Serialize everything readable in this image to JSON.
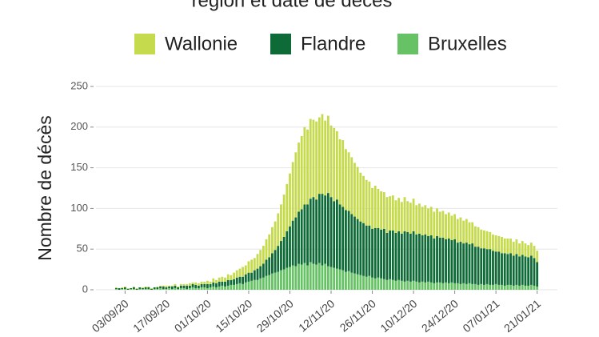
{
  "chart_data": {
    "type": "stacked-bar",
    "title": "région et date de décès",
    "y_label": "Nombre de décès",
    "legend_position": "top",
    "grid": true,
    "ylim": [
      0,
      250
    ],
    "yticks": [
      0,
      50,
      100,
      150,
      200,
      250
    ],
    "categories": [
      null,
      null,
      null,
      "03/09/20",
      null,
      null,
      null,
      null,
      null,
      null,
      null,
      null,
      null,
      null,
      null,
      null,
      null,
      "17/09/20",
      null,
      null,
      null,
      null,
      null,
      null,
      null,
      null,
      null,
      null,
      null,
      null,
      null,
      "01/10/20",
      null,
      null,
      null,
      null,
      null,
      null,
      null,
      null,
      null,
      null,
      null,
      null,
      null,
      "15/10/20",
      null,
      null,
      null,
      null,
      null,
      null,
      null,
      null,
      null,
      null,
      null,
      null,
      null,
      "29/10/20",
      null,
      null,
      null,
      null,
      null,
      null,
      null,
      null,
      null,
      null,
      null,
      null,
      null,
      "12/11/20",
      null,
      null,
      null,
      null,
      null,
      null,
      null,
      null,
      null,
      null,
      null,
      null,
      null,
      "26/11/20",
      null,
      null,
      null,
      null,
      null,
      null,
      null,
      null,
      null,
      null,
      null,
      null,
      null,
      "10/12/20",
      null,
      null,
      null,
      null,
      null,
      null,
      null,
      null,
      null,
      null,
      null,
      null,
      null,
      "24/12/20",
      null,
      null,
      null,
      null,
      null,
      null,
      null,
      null,
      null,
      null,
      null,
      null,
      null,
      "07/01/21",
      null,
      null,
      null,
      null,
      null,
      null,
      null,
      null,
      null,
      null,
      null,
      null,
      null,
      "21/01/21"
    ],
    "series": [
      {
        "name": "Bruxelles",
        "color": "#66c264",
        "values": [
          1,
          0,
          1,
          1,
          0,
          1,
          1,
          0,
          1,
          1,
          1,
          1,
          0,
          1,
          1,
          2,
          1,
          1,
          2,
          1,
          2,
          1,
          2,
          2,
          1,
          2,
          3,
          2,
          2,
          3,
          3,
          2,
          3,
          4,
          3,
          4,
          5,
          4,
          5,
          6,
          6,
          7,
          8,
          7,
          9,
          10,
          11,
          12,
          12,
          14,
          15,
          17,
          18,
          20,
          21,
          22,
          24,
          25,
          27,
          28,
          30,
          29,
          32,
          31,
          33,
          30,
          34,
          32,
          31,
          33,
          30,
          32,
          29,
          28,
          27,
          26,
          25,
          24,
          22,
          23,
          21,
          20,
          19,
          18,
          17,
          16,
          17,
          15,
          14,
          15,
          14,
          13,
          12,
          13,
          12,
          11,
          12,
          11,
          10,
          11,
          10,
          11,
          10,
          9,
          10,
          9,
          10,
          9,
          8,
          9,
          9,
          8,
          9,
          8,
          9,
          8,
          8,
          7,
          8,
          7,
          8,
          7,
          7,
          6,
          7,
          6,
          7,
          6,
          6,
          7,
          6,
          6,
          5,
          6,
          6,
          5,
          6,
          5,
          6,
          5,
          5,
          6,
          5,
          4
        ]
      },
      {
        "name": "Flandre",
        "color": "#0e6a37",
        "values": [
          1,
          2,
          1,
          2,
          1,
          1,
          2,
          1,
          2,
          1,
          2,
          2,
          1,
          2,
          2,
          2,
          3,
          2,
          2,
          3,
          3,
          2,
          3,
          3,
          4,
          3,
          4,
          4,
          3,
          4,
          4,
          5,
          4,
          5,
          5,
          6,
          5,
          6,
          7,
          6,
          7,
          8,
          8,
          9,
          10,
          11,
          10,
          12,
          14,
          15,
          17,
          20,
          22,
          25,
          28,
          32,
          36,
          40,
          45,
          50,
          55,
          60,
          64,
          68,
          72,
          75,
          78,
          82,
          80,
          85,
          88,
          84,
          90,
          86,
          82,
          85,
          80,
          78,
          76,
          74,
          72,
          70,
          68,
          66,
          65,
          63,
          62,
          60,
          62,
          61,
          60,
          62,
          58,
          60,
          61,
          59,
          60,
          58,
          62,
          60,
          59,
          61,
          58,
          60,
          57,
          59,
          56,
          58,
          55,
          57,
          55,
          56,
          53,
          55,
          52,
          54,
          50,
          52,
          49,
          51,
          48,
          50,
          46,
          47,
          44,
          45,
          43,
          44,
          42,
          40,
          41,
          39,
          40,
          38,
          39,
          37,
          38,
          36,
          37,
          36,
          35,
          36,
          34,
          30
        ]
      },
      {
        "name": "Wallonie",
        "color": "#c6da4e",
        "values": [
          1,
          0,
          1,
          1,
          1,
          0,
          1,
          1,
          0,
          1,
          1,
          1,
          1,
          0,
          1,
          1,
          1,
          2,
          1,
          1,
          2,
          1,
          2,
          2,
          2,
          3,
          2,
          3,
          3,
          3,
          3,
          4,
          3,
          5,
          4,
          5,
          6,
          5,
          7,
          6,
          8,
          9,
          10,
          12,
          11,
          14,
          16,
          15,
          18,
          20,
          22,
          25,
          28,
          32,
          35,
          40,
          45,
          52,
          58,
          65,
          72,
          80,
          85,
          90,
          95,
          92,
          98,
          95,
          96,
          94,
          98,
          92,
          95,
          88,
          90,
          84,
          80,
          82,
          75,
          72,
          70,
          66,
          64,
          60,
          58,
          56,
          54,
          50,
          52,
          48,
          47,
          45,
          44,
          42,
          43,
          40,
          41,
          39,
          42,
          38,
          38,
          40,
          36,
          37,
          35,
          36,
          34,
          35,
          33,
          34,
          32,
          33,
          31,
          32,
          30,
          31,
          29,
          30,
          28,
          29,
          27,
          26,
          25,
          24,
          23,
          22,
          22,
          21,
          20,
          20,
          19,
          20,
          18,
          19,
          18,
          17,
          18,
          16,
          17,
          16,
          15,
          16,
          15,
          14
        ]
      }
    ]
  }
}
